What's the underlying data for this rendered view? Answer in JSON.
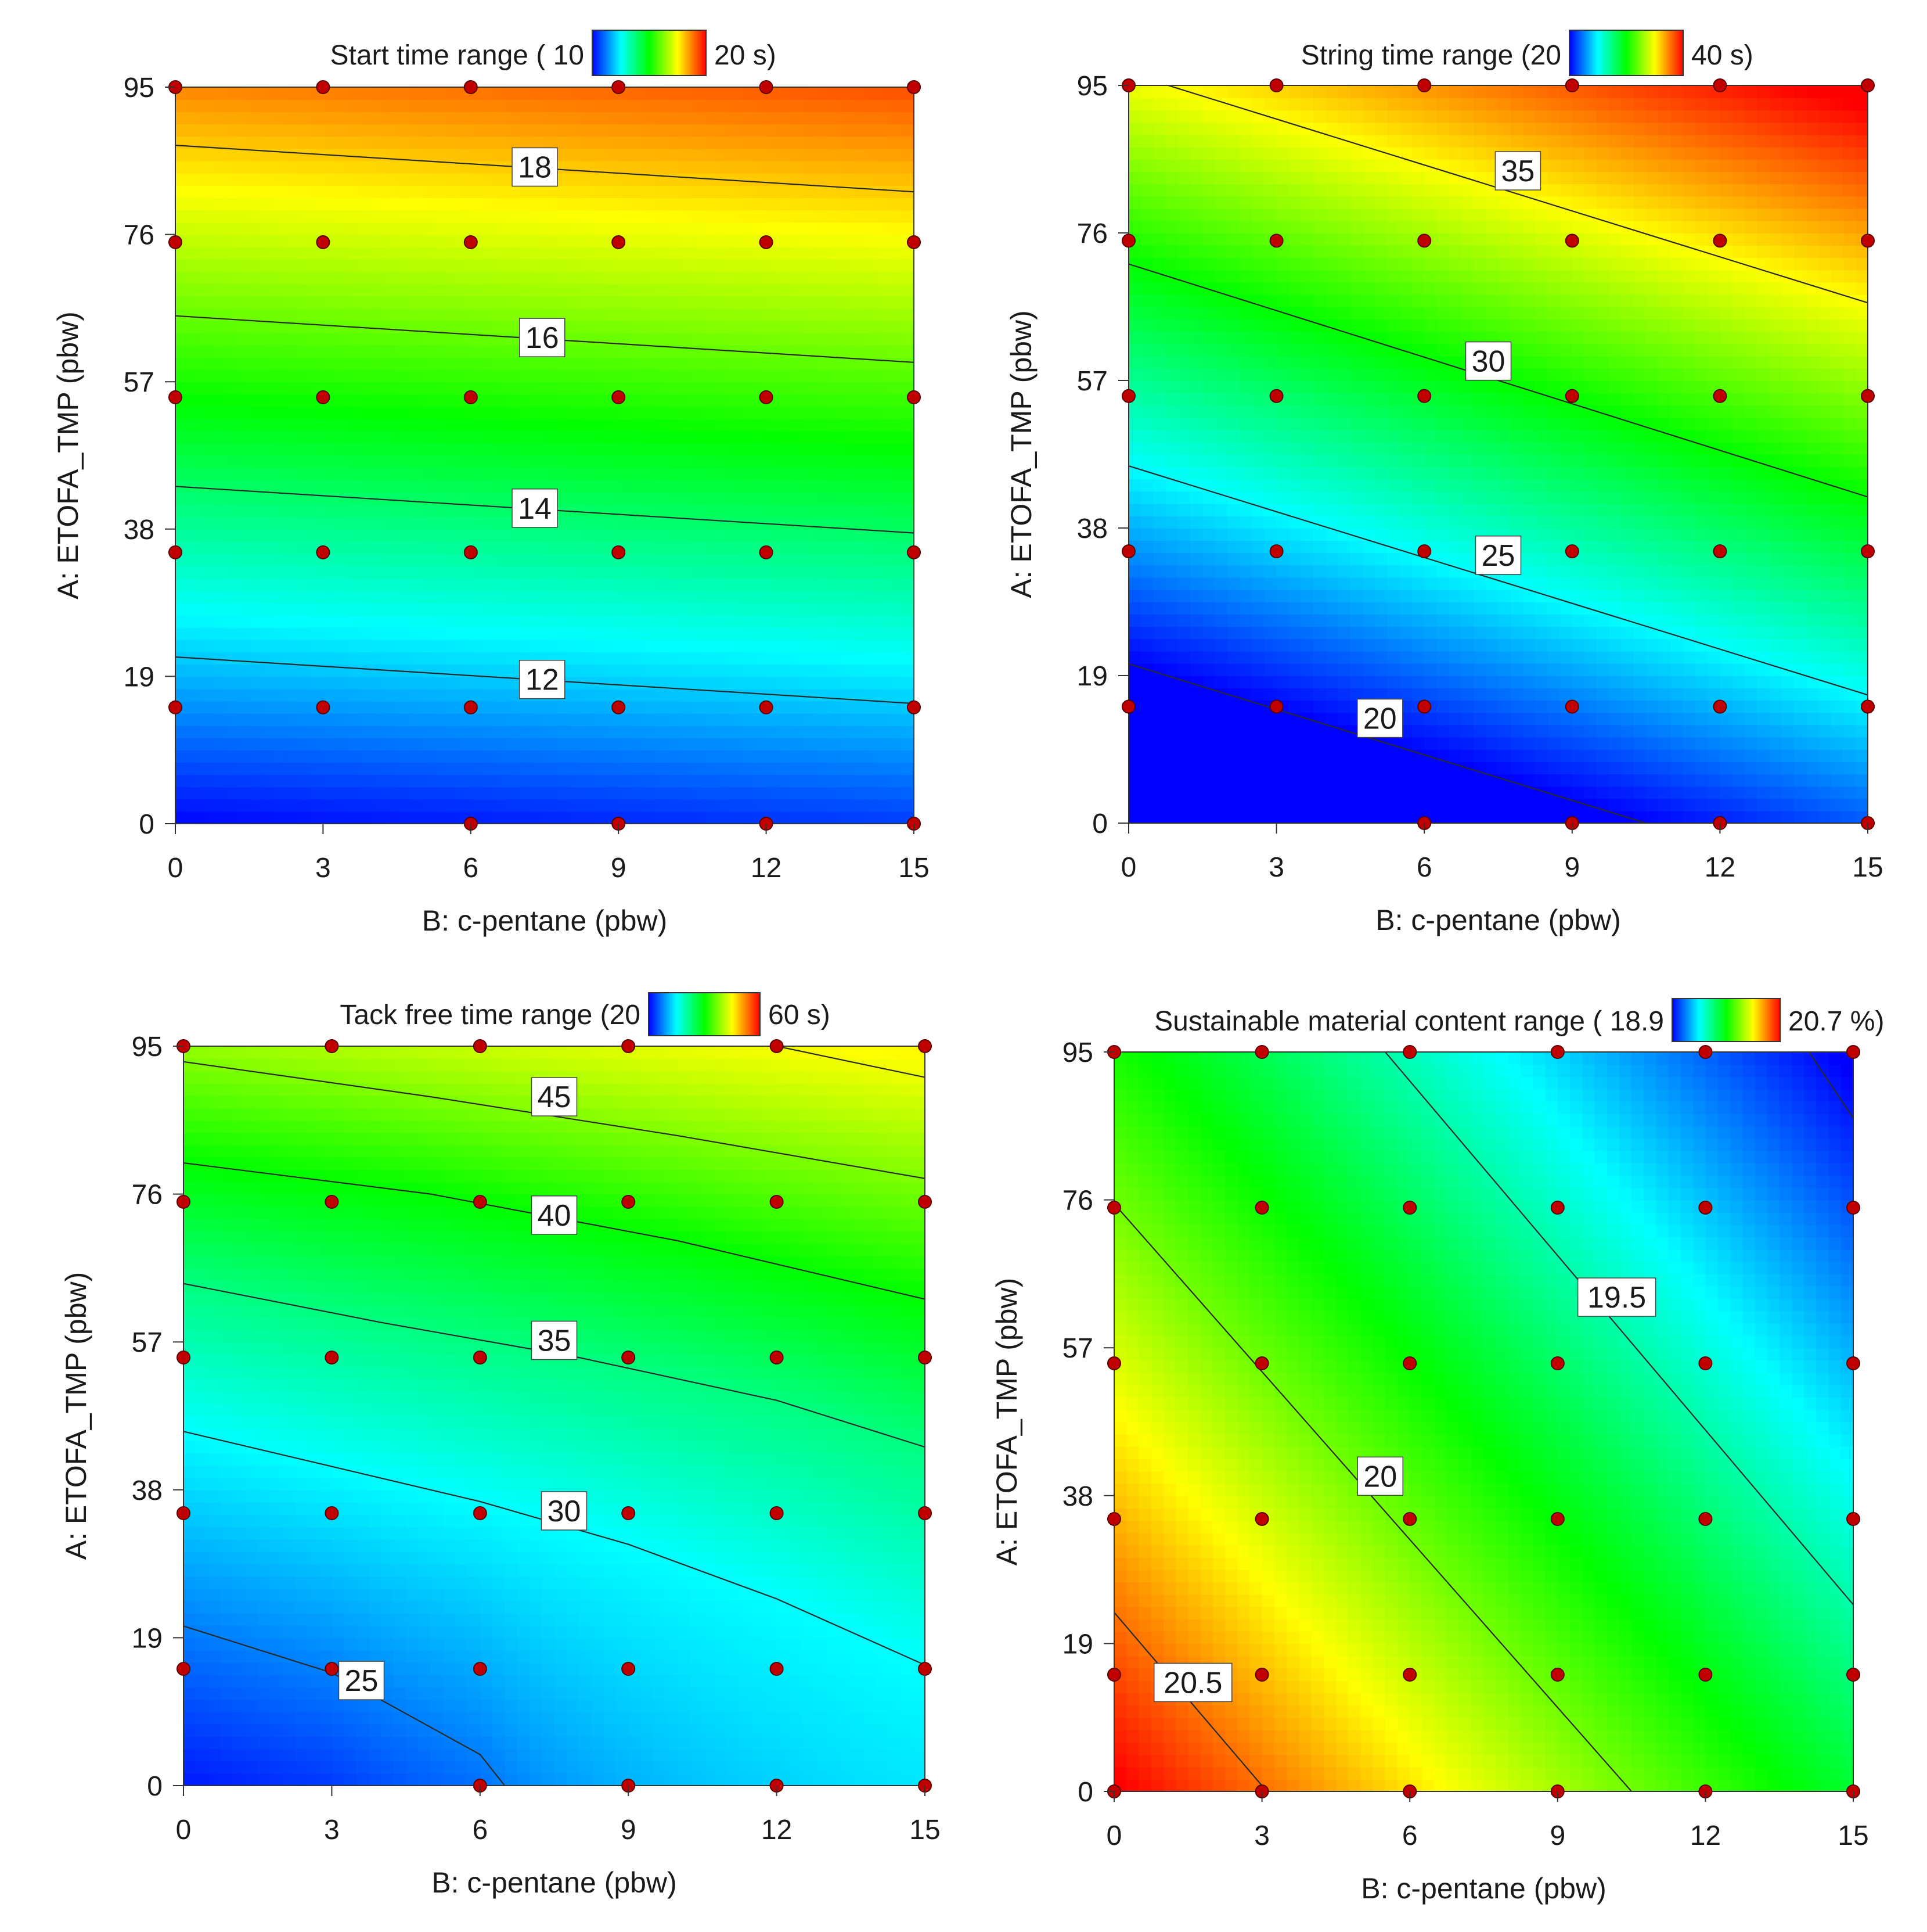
{
  "chart_data": [
    {
      "type": "heatmap",
      "id": "start-time",
      "title_prefix": "Start time range ( 10",
      "title_suffix": "20 s)",
      "xlabel": "B: c-pentane (pbw)",
      "ylabel": "A: ETOFA_TMP (pbw)",
      "xlim": [
        0,
        15
      ],
      "ylim": [
        0,
        95
      ],
      "x_ticks": [
        0,
        3,
        6,
        9,
        12,
        15
      ],
      "y_ticks": [
        0,
        19,
        38,
        57,
        76,
        95
      ],
      "x_tick_labels": [
        "0",
        "3",
        "6",
        "9",
        "12",
        "15"
      ],
      "y_tick_labels": [
        "0",
        "19",
        "38",
        "57",
        "76",
        "95"
      ],
      "zlim": [
        10,
        20
      ],
      "colorscale": [
        "#0000ff",
        "#00ffff",
        "#00ff00",
        "#ffff00",
        "#ff0000"
      ],
      "contours": [
        {
          "label": "12",
          "points": [
            [
              0,
              21.5
            ],
            [
              15,
              15.5
            ]
          ],
          "label_at": [
            7.45,
            18.6
          ]
        },
        {
          "label": "14",
          "points": [
            [
              0,
              43.5
            ],
            [
              15,
              37.5
            ]
          ],
          "label_at": [
            7.3,
            40.7
          ]
        },
        {
          "label": "16",
          "points": [
            [
              0,
              65.5
            ],
            [
              15,
              59.5
            ]
          ],
          "label_at": [
            7.45,
            62.7
          ]
        },
        {
          "label": "18",
          "points": [
            [
              0,
              87.5
            ],
            [
              15,
              81.5
            ]
          ],
          "label_at": [
            7.3,
            84.7
          ]
        }
      ],
      "design_points": [
        [
          0,
          95
        ],
        [
          3,
          95
        ],
        [
          6,
          95
        ],
        [
          9,
          95
        ],
        [
          12,
          95
        ],
        [
          15,
          95
        ],
        [
          0,
          75
        ],
        [
          3,
          75
        ],
        [
          6,
          75
        ],
        [
          9,
          75
        ],
        [
          12,
          75
        ],
        [
          15,
          75
        ],
        [
          0,
          55
        ],
        [
          3,
          55
        ],
        [
          6,
          55
        ],
        [
          9,
          55
        ],
        [
          12,
          55
        ],
        [
          15,
          55
        ],
        [
          0,
          35
        ],
        [
          3,
          35
        ],
        [
          6,
          35
        ],
        [
          9,
          35
        ],
        [
          12,
          35
        ],
        [
          15,
          35
        ],
        [
          0,
          15
        ],
        [
          3,
          15
        ],
        [
          6,
          15
        ],
        [
          9,
          15
        ],
        [
          12,
          15
        ],
        [
          15,
          15
        ],
        [
          6,
          0
        ],
        [
          9,
          0
        ],
        [
          12,
          0
        ],
        [
          15,
          0
        ]
      ]
    },
    {
      "type": "heatmap",
      "id": "string-time",
      "title_prefix": "String time range (20",
      "title_suffix": "40 s)",
      "xlabel": "B: c-pentane (pbw)",
      "ylabel": "A: ETOFA_TMP (pbw)",
      "xlim": [
        0,
        15
      ],
      "ylim": [
        0,
        95
      ],
      "x_ticks": [
        0,
        3,
        6,
        9,
        12,
        15
      ],
      "y_ticks": [
        0,
        19,
        38,
        57,
        76,
        95
      ],
      "x_tick_labels": [
        "0",
        "3",
        "6",
        "9",
        "12",
        "15"
      ],
      "y_tick_labels": [
        "0",
        "19",
        "38",
        "57",
        "76",
        "95"
      ],
      "zlim": [
        20,
        40
      ],
      "colorscale": [
        "#0000ff",
        "#00ffff",
        "#00ff00",
        "#ffff00",
        "#ff0000"
      ],
      "contours": [
        {
          "label": "20",
          "points": [
            [
              0,
              20.5
            ],
            [
              10.5,
              0
            ]
          ],
          "label_at": [
            5.1,
            13.5
          ]
        },
        {
          "label": "25",
          "points": [
            [
              0,
              46
            ],
            [
              15,
              16.5
            ]
          ],
          "label_at": [
            7.5,
            34.5
          ]
        },
        {
          "label": "30",
          "points": [
            [
              0,
              72
            ],
            [
              15,
              42
            ]
          ],
          "label_at": [
            7.3,
            59.5
          ]
        },
        {
          "label": "35",
          "points": [
            [
              0.8,
              95
            ],
            [
              15,
              67
            ]
          ],
          "label_at": [
            7.9,
            84
          ]
        }
      ],
      "design_points": [
        [
          0,
          95
        ],
        [
          3,
          95
        ],
        [
          6,
          95
        ],
        [
          9,
          95
        ],
        [
          12,
          95
        ],
        [
          15,
          95
        ],
        [
          0,
          75
        ],
        [
          3,
          75
        ],
        [
          6,
          75
        ],
        [
          9,
          75
        ],
        [
          12,
          75
        ],
        [
          15,
          75
        ],
        [
          0,
          55
        ],
        [
          3,
          55
        ],
        [
          6,
          55
        ],
        [
          9,
          55
        ],
        [
          12,
          55
        ],
        [
          15,
          55
        ],
        [
          0,
          35
        ],
        [
          3,
          35
        ],
        [
          6,
          35
        ],
        [
          9,
          35
        ],
        [
          12,
          35
        ],
        [
          15,
          35
        ],
        [
          0,
          15
        ],
        [
          3,
          15
        ],
        [
          6,
          15
        ],
        [
          9,
          15
        ],
        [
          12,
          15
        ],
        [
          15,
          15
        ],
        [
          6,
          0
        ],
        [
          9,
          0
        ],
        [
          12,
          0
        ],
        [
          15,
          0
        ]
      ]
    },
    {
      "type": "heatmap",
      "id": "tack-free-time",
      "title_prefix": "Tack free time range (20",
      "title_suffix": "60 s)",
      "xlabel": "B: c-pentane (pbw)",
      "ylabel": "A: ETOFA_TMP (pbw)",
      "xlim": [
        0,
        15
      ],
      "ylim": [
        0,
        95
      ],
      "x_ticks": [
        0,
        3,
        6,
        9,
        12,
        15
      ],
      "y_ticks": [
        0,
        19,
        38,
        57,
        76,
        95
      ],
      "x_tick_labels": [
        "0",
        "3",
        "6",
        "9",
        "12",
        "15"
      ],
      "y_tick_labels": [
        "0",
        "19",
        "38",
        "57",
        "76",
        "95"
      ],
      "zlim": [
        20,
        60
      ],
      "colorscale": [
        "#0000ff",
        "#00ffff",
        "#00ff00",
        "#ffff00",
        "#ff0000"
      ],
      "contours": [
        {
          "label": "25",
          "points": [
            [
              0,
              20.5
            ],
            [
              3,
              14.5
            ],
            [
              6,
              4
            ],
            [
              6.5,
              0
            ]
          ],
          "label_at": [
            3.6,
            13.5
          ]
        },
        {
          "label": "30",
          "points": [
            [
              0,
              45.5
            ],
            [
              3,
              41
            ],
            [
              6,
              36.5
            ],
            [
              9,
              31
            ],
            [
              12,
              24
            ],
            [
              15,
              15.5
            ]
          ],
          "label_at": [
            7.7,
            35.3
          ]
        },
        {
          "label": "35",
          "points": [
            [
              0,
              64.5
            ],
            [
              4,
              59.5
            ],
            [
              8,
              55
            ],
            [
              12,
              49.5
            ],
            [
              15,
              43.5
            ]
          ],
          "label_at": [
            7.5,
            57.2
          ]
        },
        {
          "label": "40",
          "points": [
            [
              0,
              80
            ],
            [
              5,
              76
            ],
            [
              10,
              70
            ],
            [
              15,
              62.5
            ]
          ],
          "label_at": [
            7.5,
            73.3
          ]
        },
        {
          "label": "45",
          "points": [
            [
              0,
              93
            ],
            [
              5,
              88.5
            ],
            [
              10,
              83.5
            ],
            [
              15,
              78
            ]
          ],
          "label_at": [
            7.5,
            88.5
          ]
        },
        {
          "label": "",
          "points": [
            [
              12,
              95
            ],
            [
              15,
              91
            ]
          ],
          "label_at": null
        }
      ],
      "design_points": [
        [
          0,
          95
        ],
        [
          3,
          95
        ],
        [
          6,
          95
        ],
        [
          9,
          95
        ],
        [
          12,
          95
        ],
        [
          15,
          95
        ],
        [
          0,
          75
        ],
        [
          3,
          75
        ],
        [
          6,
          75
        ],
        [
          9,
          75
        ],
        [
          12,
          75
        ],
        [
          15,
          75
        ],
        [
          0,
          55
        ],
        [
          3,
          55
        ],
        [
          6,
          55
        ],
        [
          9,
          55
        ],
        [
          12,
          55
        ],
        [
          15,
          55
        ],
        [
          0,
          35
        ],
        [
          3,
          35
        ],
        [
          6,
          35
        ],
        [
          9,
          35
        ],
        [
          12,
          35
        ],
        [
          15,
          35
        ],
        [
          0,
          15
        ],
        [
          3,
          15
        ],
        [
          6,
          15
        ],
        [
          9,
          15
        ],
        [
          12,
          15
        ],
        [
          15,
          15
        ],
        [
          6,
          0
        ],
        [
          9,
          0
        ],
        [
          12,
          0
        ],
        [
          15,
          0
        ]
      ]
    },
    {
      "type": "heatmap",
      "id": "sustainable-material",
      "title_prefix": "Sustainable material content range ( 18.9",
      "title_suffix": "20.7 %)",
      "xlabel": "B: c-pentane (pbw)",
      "ylabel": "A: ETOFA_TMP (pbw)",
      "xlim": [
        0,
        15
      ],
      "ylim": [
        0,
        95
      ],
      "x_ticks": [
        0,
        3,
        6,
        9,
        12,
        15
      ],
      "y_ticks": [
        0,
        19,
        38,
        57,
        76,
        95
      ],
      "x_tick_labels": [
        "0",
        "3",
        "6",
        "9",
        "12",
        "15"
      ],
      "y_tick_labels": [
        "0",
        "19",
        "38",
        "57",
        "76",
        "95"
      ],
      "zlim": [
        18.9,
        20.7
      ],
      "colorscale": [
        "#0000ff",
        "#00ffff",
        "#00ff00",
        "#ffff00",
        "#ff0000"
      ],
      "contours": [
        {
          "label": "20.5",
          "points": [
            [
              0,
              23
            ],
            [
              3.1,
              0
            ]
          ],
          "label_at": [
            1.6,
            14
          ]
        },
        {
          "label": "20",
          "points": [
            [
              0,
              75.5
            ],
            [
              10.5,
              0
            ]
          ],
          "label_at": [
            5.4,
            40.5
          ]
        },
        {
          "label": "19.5",
          "points": [
            [
              5.5,
              95
            ],
            [
              15,
              24
            ]
          ],
          "label_at": [
            10.2,
            63.5
          ]
        },
        {
          "label": "",
          "points": [
            [
              14.1,
              95
            ],
            [
              15,
              86.5
            ]
          ],
          "label_at": null
        }
      ],
      "design_points": [
        [
          0,
          95
        ],
        [
          3,
          95
        ],
        [
          6,
          95
        ],
        [
          9,
          95
        ],
        [
          12,
          95
        ],
        [
          15,
          95
        ],
        [
          0,
          75
        ],
        [
          3,
          75
        ],
        [
          6,
          75
        ],
        [
          9,
          75
        ],
        [
          12,
          75
        ],
        [
          15,
          75
        ],
        [
          0,
          55
        ],
        [
          3,
          55
        ],
        [
          6,
          55
        ],
        [
          9,
          55
        ],
        [
          12,
          55
        ],
        [
          15,
          55
        ],
        [
          0,
          35
        ],
        [
          3,
          35
        ],
        [
          6,
          35
        ],
        [
          9,
          35
        ],
        [
          12,
          35
        ],
        [
          15,
          35
        ],
        [
          0,
          15
        ],
        [
          3,
          15
        ],
        [
          6,
          15
        ],
        [
          9,
          15
        ],
        [
          12,
          15
        ],
        [
          15,
          15
        ],
        [
          0,
          0
        ],
        [
          3,
          0
        ],
        [
          6,
          0
        ],
        [
          9,
          0
        ],
        [
          12,
          0
        ],
        [
          15,
          0
        ]
      ]
    }
  ]
}
